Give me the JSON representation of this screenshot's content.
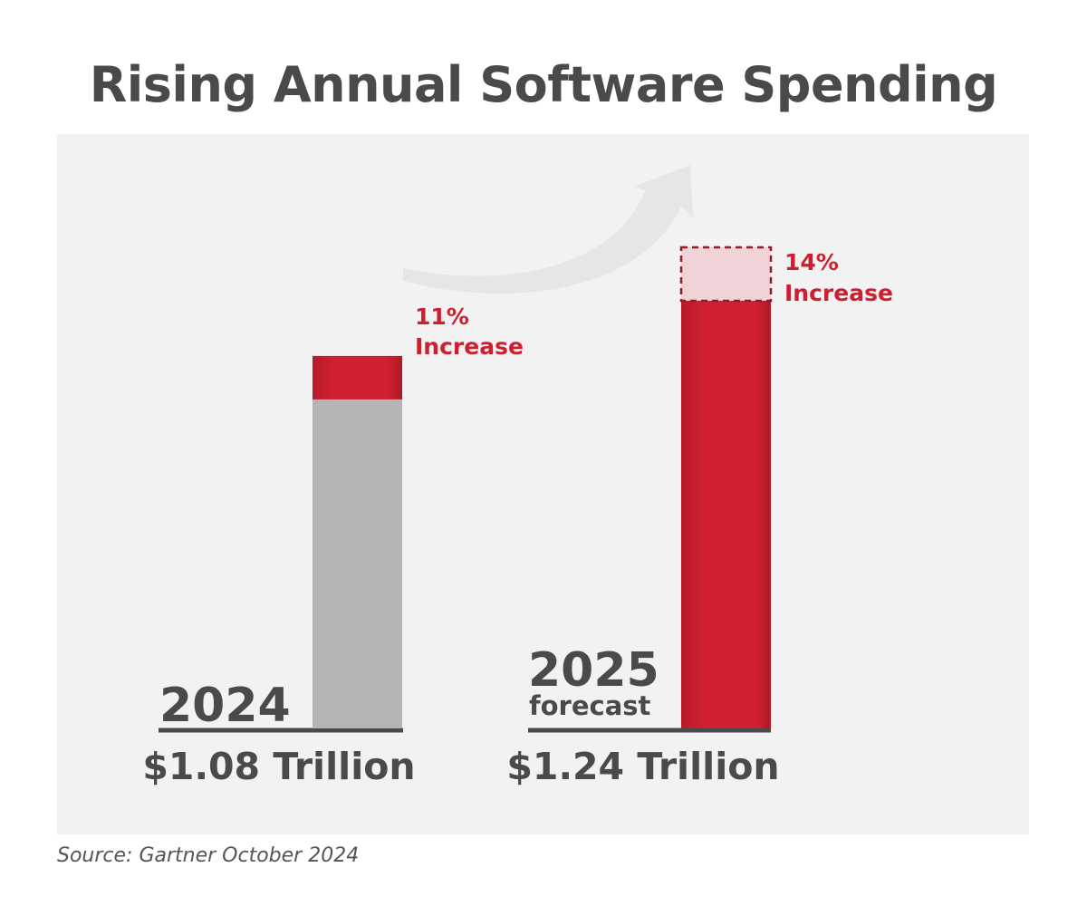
{
  "chart_data": {
    "type": "bar",
    "title": "Rising Annual Software Spending",
    "categories": [
      "2024",
      "2025"
    ],
    "category_sublabels": [
      "",
      "forecast"
    ],
    "values": [
      1.08,
      1.24
    ],
    "value_labels": [
      "$1.08 Trillion",
      "$1.24 Trillion"
    ],
    "increase_labels": [
      {
        "pct": "11%",
        "text": "Increase"
      },
      {
        "pct": "14%",
        "text": "Increase"
      }
    ],
    "ylim": [
      0,
      1.4
    ],
    "grid": false,
    "legend": "none"
  },
  "source": "Source: Gartner October 2024",
  "colors": {
    "gray_bar": "#b3b4b3",
    "red": "#cc1f2f",
    "red_dark": "#a81a27",
    "light_pink": "#f0d3d6",
    "text": "#4a4a4a",
    "arrow": "#e5e6e7"
  }
}
